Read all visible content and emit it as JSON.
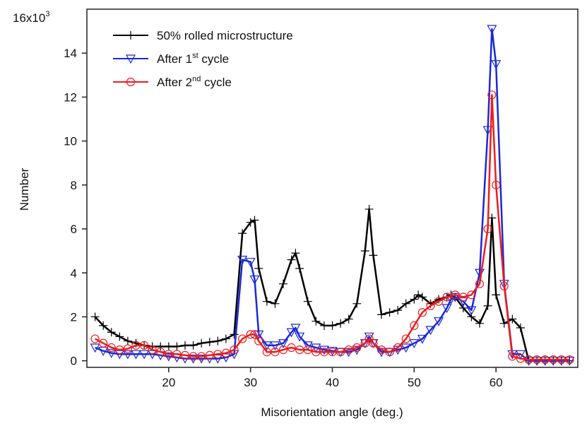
{
  "chart_data": {
    "type": "line",
    "title": "",
    "xlabel": "Misorientation angle (deg.)",
    "ylabel": "Number",
    "xlim": [
      10,
      70
    ],
    "ylim": [
      -0.3,
      16
    ],
    "y_multiplier_label": "16x10",
    "y_multiplier_exponent": "3",
    "x_ticks": [
      20,
      30,
      40,
      50,
      60
    ],
    "y_ticks": [
      0,
      2,
      4,
      6,
      8,
      10,
      12,
      14
    ],
    "legend": [
      {
        "text": "50% rolled microstructure",
        "sup": "",
        "suffix": ""
      },
      {
        "text": "After 1",
        "sup": "st",
        "suffix": " cycle"
      },
      {
        "text": "After 2",
        "sup": "nd",
        "suffix": " cycle"
      }
    ],
    "series": [
      {
        "name": "50% rolled microstructure",
        "color": "#000000",
        "marker": "plus",
        "x": [
          11,
          12,
          13,
          14,
          15,
          16,
          17,
          18,
          19,
          20,
          21,
          22,
          23,
          24,
          25,
          26,
          27,
          28,
          29,
          30,
          30.5,
          31,
          32,
          33,
          34,
          35,
          35.5,
          36,
          37,
          38,
          39,
          40,
          41,
          42,
          43,
          44,
          44.5,
          45,
          46,
          47,
          48,
          49,
          50,
          50.5,
          51,
          52,
          53,
          54,
          54.5,
          55,
          56,
          57,
          58,
          59,
          59.5,
          60,
          61,
          62,
          63,
          64,
          65,
          66,
          67,
          68,
          69
        ],
        "y": [
          2.0,
          1.6,
          1.3,
          1.1,
          0.9,
          0.8,
          0.7,
          0.65,
          0.65,
          0.65,
          0.65,
          0.7,
          0.7,
          0.8,
          0.85,
          0.9,
          1.0,
          1.2,
          5.8,
          6.3,
          6.4,
          4.2,
          2.7,
          2.6,
          3.5,
          4.6,
          4.9,
          4.2,
          2.7,
          1.8,
          1.6,
          1.6,
          1.7,
          1.9,
          2.6,
          5.0,
          6.9,
          4.8,
          2.1,
          2.2,
          2.3,
          2.6,
          2.8,
          3.0,
          2.9,
          2.6,
          2.8,
          2.9,
          3.0,
          2.9,
          2.4,
          2.0,
          1.7,
          2.5,
          6.5,
          3.0,
          1.7,
          1.9,
          1.5,
          0.0,
          0.0,
          0.0,
          0.0,
          0.0,
          0.0
        ]
      },
      {
        "name": "After 1st cycle",
        "color": "#1a28d8",
        "marker": "triangle-down",
        "x": [
          11,
          12,
          13,
          14,
          15,
          16,
          17,
          18,
          19,
          20,
          21,
          22,
          23,
          24,
          25,
          26,
          27,
          28,
          29,
          30,
          30.5,
          31,
          32,
          33,
          34,
          35,
          35.5,
          36,
          37,
          38,
          39,
          40,
          41,
          42,
          43,
          44,
          44.5,
          45,
          46,
          47,
          48,
          49,
          50,
          51,
          52,
          53,
          54,
          54.5,
          55,
          56,
          57,
          58,
          59,
          59.5,
          60,
          61,
          62,
          63,
          64,
          65,
          66,
          67,
          68,
          69
        ],
        "y": [
          0.6,
          0.45,
          0.35,
          0.3,
          0.3,
          0.3,
          0.3,
          0.3,
          0.25,
          0.2,
          0.15,
          0.1,
          0.1,
          0.1,
          0.1,
          0.1,
          0.15,
          0.3,
          4.6,
          4.5,
          3.7,
          1.2,
          0.7,
          0.7,
          0.8,
          1.3,
          1.5,
          1.1,
          0.7,
          0.6,
          0.5,
          0.45,
          0.4,
          0.4,
          0.5,
          0.8,
          1.1,
          0.8,
          0.4,
          0.4,
          0.5,
          0.6,
          0.8,
          1.0,
          1.4,
          1.8,
          2.4,
          2.8,
          2.9,
          2.7,
          2.3,
          4.0,
          10.5,
          15.1,
          13.5,
          3.5,
          0.3,
          0.3,
          0.0,
          0.0,
          0.0,
          0.0,
          0.0,
          0.0
        ]
      },
      {
        "name": "After 2nd cycle",
        "color": "#ee1c1c",
        "marker": "circle",
        "x": [
          11,
          12,
          13,
          14,
          15,
          16,
          17,
          18,
          19,
          20,
          21,
          22,
          23,
          24,
          25,
          26,
          27,
          28,
          29,
          30,
          30.5,
          31,
          32,
          33,
          34,
          35,
          36,
          37,
          38,
          39,
          40,
          41,
          42,
          43,
          44,
          44.5,
          45,
          46,
          47,
          48,
          49,
          50,
          51,
          52,
          53,
          54,
          55,
          56,
          57,
          58,
          59,
          59.5,
          60,
          61,
          62,
          63,
          64,
          65,
          66,
          67,
          68,
          69
        ],
        "y": [
          1.0,
          0.8,
          0.6,
          0.5,
          0.55,
          0.7,
          0.7,
          0.5,
          0.4,
          0.3,
          0.3,
          0.25,
          0.2,
          0.2,
          0.25,
          0.3,
          0.35,
          0.5,
          1.0,
          1.2,
          1.2,
          0.9,
          0.4,
          0.4,
          0.5,
          0.6,
          0.5,
          0.5,
          0.4,
          0.4,
          0.4,
          0.4,
          0.5,
          0.6,
          0.8,
          1.0,
          0.8,
          0.5,
          0.4,
          0.6,
          1.0,
          1.6,
          2.2,
          2.5,
          2.7,
          2.9,
          3.0,
          2.9,
          3.0,
          3.5,
          6.0,
          12.1,
          8.0,
          3.4,
          0.2,
          0.1,
          0.05,
          0.05,
          0.05,
          0.05,
          0.05,
          0.05
        ]
      }
    ]
  }
}
